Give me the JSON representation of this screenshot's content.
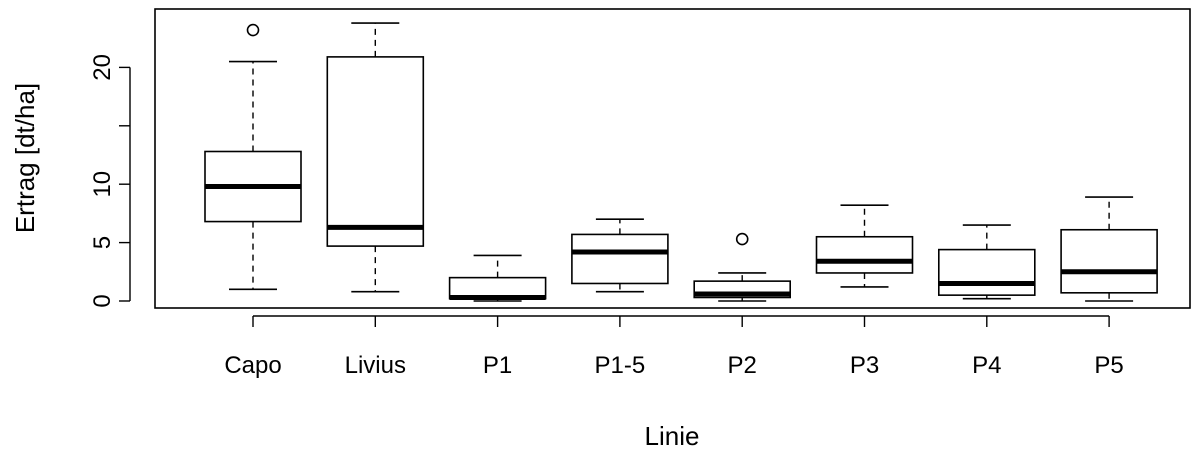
{
  "chart_data": {
    "type": "boxplot",
    "xlabel": "Linie",
    "ylabel": "Ertrag [dt/ha]",
    "ylim": [
      -0.6,
      25
    ],
    "yticks": [
      0,
      5,
      10,
      15,
      20
    ],
    "ytick_labels": [
      "0",
      "5",
      "10",
      "",
      "20"
    ],
    "grid": false,
    "categories": [
      "Capo",
      "Livius",
      "P1",
      "P1-5",
      "P2",
      "P3",
      "P4",
      "P5"
    ],
    "boxes": [
      {
        "category": "Capo",
        "min": 1.0,
        "q1": 6.8,
        "median": 9.8,
        "q3": 12.8,
        "max": 20.5,
        "outliers": [
          23.2
        ]
      },
      {
        "category": "Livius",
        "min": 0.8,
        "q1": 4.7,
        "median": 6.3,
        "q3": 20.9,
        "max": 23.8,
        "outliers": []
      },
      {
        "category": "P1",
        "min": 0.0,
        "q1": 0.2,
        "median": 0.3,
        "q3": 2.0,
        "max": 3.9,
        "outliers": []
      },
      {
        "category": "P1-5",
        "min": 0.8,
        "q1": 1.5,
        "median": 4.2,
        "q3": 5.7,
        "max": 7.0,
        "outliers": []
      },
      {
        "category": "P2",
        "min": 0.0,
        "q1": 0.3,
        "median": 0.6,
        "q3": 1.7,
        "max": 2.4,
        "outliers": [
          5.3
        ]
      },
      {
        "category": "P3",
        "min": 1.2,
        "q1": 2.4,
        "median": 3.4,
        "q3": 5.5,
        "max": 8.2,
        "outliers": []
      },
      {
        "category": "P4",
        "min": 0.2,
        "q1": 0.5,
        "median": 1.5,
        "q3": 4.4,
        "max": 6.5,
        "outliers": []
      },
      {
        "category": "P5",
        "min": 0.0,
        "q1": 0.7,
        "median": 2.5,
        "q3": 6.1,
        "max": 8.9,
        "outliers": []
      }
    ]
  }
}
